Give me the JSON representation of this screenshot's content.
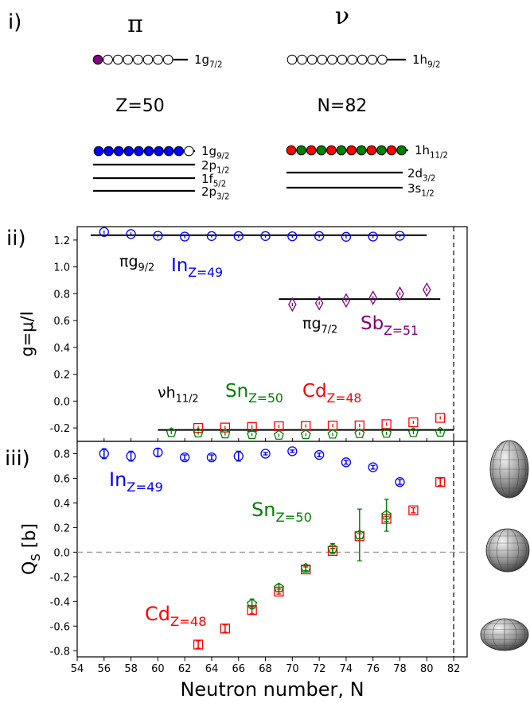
{
  "panel_labels": {
    "i": "i)",
    "ii": "ii)",
    "iii": "iii)"
  },
  "schematic": {
    "proton_symbol": "π",
    "neutron_symbol": "ν",
    "proton_gap": "Z=50",
    "neutron_gap": "N=82",
    "proton_upper_level": {
      "name": "1g",
      "sub": "7/2",
      "filled": 1,
      "empty": 7,
      "fill_color": "#800080"
    },
    "neutron_upper_level": {
      "name": "1h",
      "sub": "9/2",
      "filled": 0,
      "empty": 10
    },
    "proton_lower_levels": [
      {
        "name": "1g",
        "sub": "9/2",
        "filled": 9,
        "empty": 1,
        "fill_color": "#0000ff",
        "orbit": true
      },
      {
        "name": "2p",
        "sub": "1/2",
        "orbit": false
      },
      {
        "name": "1f",
        "sub": "5/2",
        "orbit": false
      },
      {
        "name": "2p",
        "sub": "3/2",
        "orbit": false
      }
    ],
    "neutron_lower_levels": [
      {
        "name": "1h",
        "sub": "11/2",
        "filled": 12,
        "empty": 0,
        "fill_color": "#ff0000",
        "alt_color": "#008000",
        "orbit": true
      },
      {
        "name": "2d",
        "sub": "3/2",
        "orbit": false
      },
      {
        "name": "3s",
        "sub": "1/2",
        "orbit": false
      }
    ]
  },
  "chart_data": [
    {
      "type": "scatter",
      "title": "",
      "ylabel": "g=μ/I",
      "xlim": [
        54,
        83
      ],
      "ylim": [
        -0.3,
        1.3
      ],
      "yticks": [
        -0.2,
        0.0,
        0.2,
        0.4,
        0.6,
        0.8,
        1.0,
        1.2
      ],
      "vline_x": 82,
      "series": [
        {
          "name": "In",
          "sub": "Z=49",
          "color": "#0000ff",
          "marker": "circle",
          "x": [
            56,
            58,
            60,
            62,
            64,
            66,
            68,
            70,
            72,
            74,
            76,
            78
          ],
          "y": [
            1.26,
            1.245,
            1.232,
            1.226,
            1.23,
            1.23,
            1.23,
            1.228,
            1.23,
            1.224,
            1.226,
            1.232
          ]
        },
        {
          "name": "Sb",
          "sub": "Z=51",
          "color": "#800080",
          "marker": "diamond",
          "x": [
            70,
            72,
            74,
            76,
            78,
            80
          ],
          "y": [
            0.72,
            0.73,
            0.75,
            0.77,
            0.8,
            0.83
          ]
        },
        {
          "name": "Cd",
          "sub": "Z=48",
          "color": "#ff0000",
          "marker": "square",
          "x": [
            63,
            65,
            67,
            69,
            71,
            73,
            75,
            77,
            79,
            81
          ],
          "y": [
            -0.2,
            -0.197,
            -0.193,
            -0.187,
            -0.185,
            -0.182,
            -0.181,
            -0.172,
            -0.158,
            -0.125
          ]
        },
        {
          "name": "Sn",
          "sub": "Z=50",
          "color": "#008000",
          "marker": "pentagon",
          "x": [
            61,
            63,
            65,
            67,
            69,
            71,
            73,
            75,
            77,
            79,
            81
          ],
          "y": [
            -0.235,
            -0.238,
            -0.245,
            -0.25,
            -0.255,
            -0.25,
            -0.247,
            -0.243,
            -0.24,
            -0.235,
            -0.232
          ]
        }
      ],
      "reference_lines": [
        {
          "label": "πg",
          "sub": "9/2",
          "x": [
            55,
            80
          ],
          "y": 1.236
        },
        {
          "label": "πg",
          "sub": "7/2",
          "x": [
            69,
            81
          ],
          "y": 0.76
        },
        {
          "label": "νh",
          "sub": "11/2",
          "x": [
            60,
            82
          ],
          "y": -0.215
        }
      ]
    },
    {
      "type": "scatter",
      "xlabel": "Neutron number, N",
      "ylabel": "Q_S [b]",
      "xlim": [
        54,
        83
      ],
      "ylim": [
        -0.85,
        0.9
      ],
      "xticks": [
        54,
        56,
        58,
        60,
        62,
        64,
        66,
        68,
        70,
        72,
        74,
        76,
        78,
        80,
        82
      ],
      "yticks": [
        -0.8,
        -0.6,
        -0.4,
        -0.2,
        0.0,
        0.2,
        0.4,
        0.6,
        0.8
      ],
      "vline_x": 82,
      "zero_line": true,
      "series": [
        {
          "name": "In",
          "sub": "Z=49",
          "color": "#0000ff",
          "marker": "circle",
          "x": [
            56,
            58,
            60,
            62,
            64,
            66,
            68,
            70,
            72,
            74,
            76,
            78
          ],
          "y": [
            0.8,
            0.78,
            0.81,
            0.77,
            0.77,
            0.78,
            0.8,
            0.82,
            0.79,
            0.73,
            0.69,
            0.57
          ],
          "err": [
            0.04,
            0.04,
            0.03,
            0.02,
            0.02,
            0.04,
            0.01,
            0.01,
            0.015,
            0.015,
            0.015,
            0.02
          ]
        },
        {
          "name": "Cd",
          "sub": "Z=48",
          "color": "#ff0000",
          "marker": "square",
          "x": [
            63,
            65,
            67,
            69,
            71,
            73,
            75,
            77,
            79,
            81
          ],
          "y": [
            -0.75,
            -0.62,
            -0.47,
            -0.32,
            -0.14,
            0.01,
            0.13,
            0.27,
            0.34,
            0.57
          ],
          "err": [
            0.03,
            0.03,
            0.03,
            0.02,
            0.02,
            0.02,
            0.02,
            0.02,
            0.02,
            0.03
          ]
        },
        {
          "name": "Sn",
          "sub": "Z=50",
          "color": "#008000",
          "marker": "pentagon",
          "x": [
            67,
            69,
            71,
            73,
            75,
            77
          ],
          "y": [
            -0.42,
            -0.29,
            -0.13,
            0.03,
            0.14,
            0.3
          ],
          "err": [
            0.04,
            0.03,
            0.02,
            0.04,
            0.21,
            0.13
          ]
        }
      ]
    }
  ]
}
